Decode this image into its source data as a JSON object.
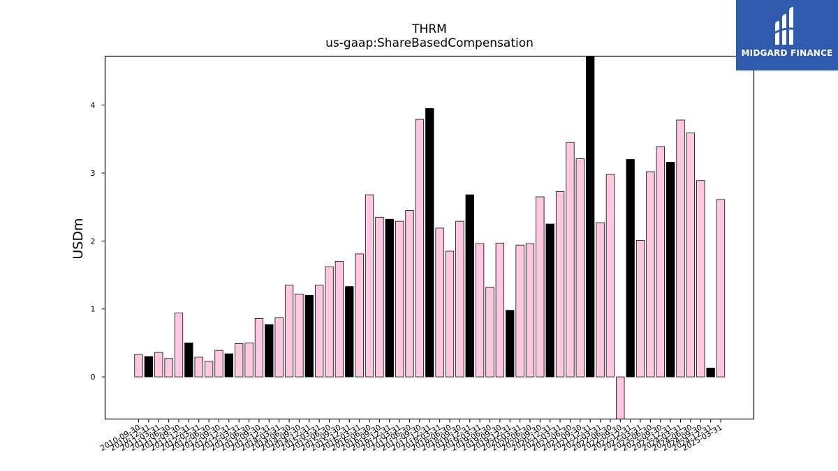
{
  "chart_data": {
    "type": "bar",
    "title": "THRM",
    "subtitle": "us-gaap:ShareBasedCompensation",
    "ylabel": "USDm",
    "xlabel": "",
    "ylim": [
      -0.62,
      4.72
    ],
    "yticks": [
      0,
      1,
      2,
      3,
      4
    ],
    "grid": false,
    "colors": {
      "quarter": "#ffc8e0",
      "annual": "#000000",
      "edge": "#000000"
    },
    "categories": [
      "2010-09-30",
      "2010-12-31",
      "2011-03-31",
      "2011-06-30",
      "2011-09-30",
      "2011-12-31",
      "2012-03-31",
      "2012-06-30",
      "2012-09-30",
      "2012-12-31",
      "2013-03-31",
      "2013-06-30",
      "2013-09-30",
      "2013-12-31",
      "2014-03-31",
      "2014-06-30",
      "2014-09-30",
      "2014-12-31",
      "2015-03-31",
      "2015-06-30",
      "2015-09-30",
      "2015-12-31",
      "2016-03-31",
      "2016-06-30",
      "2016-09-30",
      "2016-12-31",
      "2017-03-31",
      "2017-06-30",
      "2017-09-30",
      "2017-12-31",
      "2018-03-31",
      "2018-06-30",
      "2018-09-30",
      "2018-12-31",
      "2019-03-31",
      "2019-06-30",
      "2019-09-30",
      "2019-12-31",
      "2020-03-31",
      "2020-06-30",
      "2020-09-30",
      "2020-12-31",
      "2021-03-31",
      "2021-06-30",
      "2021-09-30",
      "2021-12-31",
      "2022-03-31",
      "2022-06-30",
      "2022-09-30",
      "2022-12-31",
      "2023-03-31",
      "2023-06-30",
      "2023-09-30",
      "2023-12-31",
      "2024-03-31",
      "2024-06-30",
      "2024-09-30",
      "2024-12-31",
      "2025-03-31"
    ],
    "values": [
      0.33,
      0.3,
      0.36,
      0.27,
      0.94,
      0.5,
      0.29,
      0.23,
      0.39,
      0.34,
      0.49,
      0.5,
      0.86,
      0.77,
      0.87,
      1.35,
      1.22,
      1.2,
      1.35,
      1.62,
      1.7,
      1.33,
      1.81,
      2.68,
      2.35,
      2.32,
      2.29,
      2.45,
      3.79,
      3.95,
      2.19,
      1.85,
      2.29,
      2.68,
      1.96,
      1.32,
      1.97,
      0.98,
      1.94,
      1.96,
      2.65,
      2.25,
      2.73,
      3.45,
      3.21,
      4.72,
      2.27,
      2.98,
      -0.62,
      3.2,
      2.01,
      3.02,
      3.39,
      3.16,
      3.78,
      3.59,
      2.89,
      0.13,
      2.61
    ],
    "annual": [
      false,
      true,
      false,
      false,
      false,
      true,
      false,
      false,
      false,
      true,
      false,
      false,
      false,
      true,
      false,
      false,
      false,
      true,
      false,
      false,
      false,
      true,
      false,
      false,
      false,
      true,
      false,
      false,
      false,
      true,
      false,
      false,
      false,
      true,
      false,
      false,
      false,
      true,
      false,
      false,
      false,
      true,
      false,
      false,
      false,
      true,
      false,
      false,
      false,
      true,
      false,
      false,
      false,
      true,
      false,
      false,
      false,
      true,
      false
    ]
  },
  "logo": {
    "text": "MIDGARD FINANCE"
  }
}
